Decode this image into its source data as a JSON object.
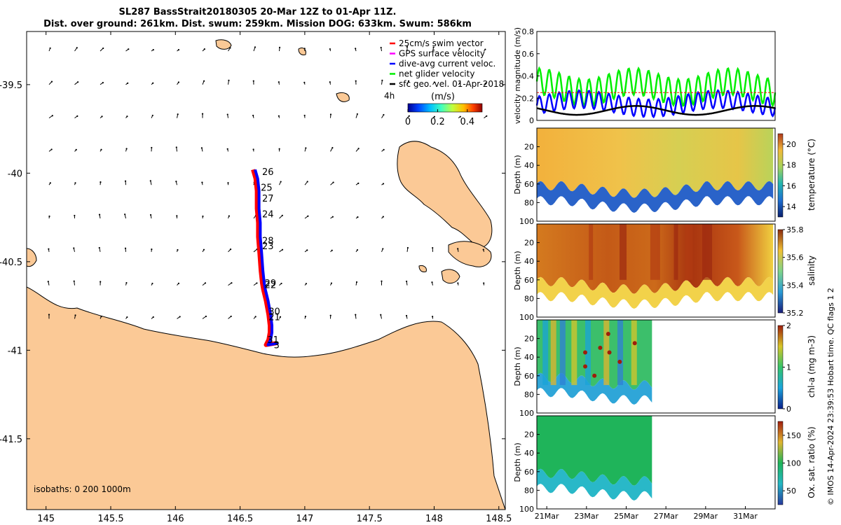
{
  "title": {
    "line1": "SL287 BassStrait20180305 20-Mar 12Z to 01-Apr 11Z.",
    "line2": "Dist. over ground: 261km. Dist. swum: 259km. Mission DOG: 633km. Swum: 586km"
  },
  "credit": "© IMOS 14-Apr-2024 23:39:53 Hobart time. QC flags 1  2",
  "colors": {
    "land": "#fbc996",
    "track_red": "#ff0000",
    "track_blue": "#0000ff",
    "net_velocity": "#00ee00",
    "speed_colormap": [
      "#00008f",
      "#0040ff",
      "#00bfff",
      "#40ffbf",
      "#bfff40",
      "#ffbf00",
      "#ff4000",
      "#8f0000"
    ]
  },
  "chart_data": [
    {
      "type": "scatter",
      "name": "map",
      "xlim": [
        144.85,
        148.55
      ],
      "ylim": [
        -41.9,
        -39.2
      ],
      "xticks": [
        145,
        145.5,
        146,
        146.5,
        147,
        147.5,
        148,
        148.5
      ],
      "xtick_labels": [
        "145",
        "145.5",
        "146",
        "146.5",
        "147",
        "147.5",
        "148",
        "148.5"
      ],
      "yticks": [
        -39.5,
        -40,
        -40.5,
        -41,
        -41.5
      ],
      "ytick_labels": [
        "-39.5",
        "-40",
        "-40.5",
        "-41",
        "-41.5"
      ],
      "legend": {
        "placement": "top-right",
        "items": [
          {
            "label": "25cm/s swim vector",
            "color": "#ff0000"
          },
          {
            "label": "GPS surface velocity",
            "color": "#ff00ff"
          },
          {
            "label": "dive-avg current veloc.",
            "color": "#0000ff"
          },
          {
            "label": "net glider velocity",
            "color": "#00ee00"
          },
          {
            "label": "sfc geo. vel. 01-Apr-2018",
            "color": "#000000"
          }
        ]
      },
      "vector_scale_label": "4h",
      "colorbar": {
        "label": "(m/s)",
        "range": [
          0,
          0.5
        ],
        "ticks": [
          0,
          0.2,
          0.4
        ],
        "tick_labels": [
          "0",
          "0.2",
          "0.4"
        ]
      },
      "isobath_label": "isobaths: 0   200  1000m",
      "track": [
        [
          146.6,
          -39.98
        ],
        [
          146.62,
          -40.03
        ],
        [
          146.63,
          -40.1
        ],
        [
          146.63,
          -40.2
        ],
        [
          146.64,
          -40.28
        ],
        [
          146.64,
          -40.36
        ],
        [
          146.65,
          -40.45
        ],
        [
          146.66,
          -40.55
        ],
        [
          146.67,
          -40.62
        ],
        [
          146.68,
          -40.66
        ],
        [
          146.7,
          -40.72
        ],
        [
          146.72,
          -40.8
        ],
        [
          146.73,
          -40.86
        ],
        [
          146.73,
          -40.9
        ],
        [
          146.72,
          -40.94
        ],
        [
          146.7,
          -40.97
        ],
        [
          146.78,
          -40.96
        ]
      ],
      "day_labels": [
        {
          "text": "26",
          "lon": 146.67,
          "lat": -39.99
        },
        {
          "text": "25",
          "lon": 146.66,
          "lat": -40.08
        },
        {
          "text": "27",
          "lon": 146.67,
          "lat": -40.14
        },
        {
          "text": "24",
          "lon": 146.67,
          "lat": -40.23
        },
        {
          "text": "28",
          "lon": 146.67,
          "lat": -40.38
        },
        {
          "text": "23",
          "lon": 146.67,
          "lat": -40.41
        },
        {
          "text": "29",
          "lon": 146.69,
          "lat": -40.62
        },
        {
          "text": "22",
          "lon": 146.69,
          "lat": -40.63
        },
        {
          "text": "30",
          "lon": 146.72,
          "lat": -40.78
        },
        {
          "text": "21",
          "lon": 146.72,
          "lat": -40.81
        },
        {
          "text": "31",
          "lon": 146.71,
          "lat": -40.94
        },
        {
          "text": "3",
          "lon": 146.76,
          "lat": -40.97
        }
      ]
    },
    {
      "type": "line",
      "name": "velocity",
      "ylabel": "velocity magnitude (m/s)",
      "ylim": [
        0,
        0.8
      ],
      "yticks": [
        0,
        0.2,
        0.4,
        0.6,
        0.8
      ],
      "ytick_labels": [
        "0",
        "0.2",
        "0.4",
        "0.6",
        "0.8"
      ],
      "xlim": [
        20.5,
        32.5
      ],
      "series": [
        {
          "color": "#00ee00",
          "base": 0.3,
          "amp": 0.12,
          "period": 0.5
        },
        {
          "color": "#0000ff",
          "base": 0.15,
          "amp": 0.08,
          "period": 0.5
        },
        {
          "color": "#000000",
          "base": 0.09,
          "amp": 0.04,
          "period": 6
        },
        {
          "color": "#ff0000",
          "constant": 0.25
        }
      ]
    },
    {
      "type": "heatmap",
      "name": "temperature",
      "ylabel": "Depth (m)",
      "ylim": [
        100,
        0
      ],
      "yticks": [
        20,
        40,
        60,
        80,
        100
      ],
      "ytick_labels": [
        "20",
        "40",
        "60",
        "80",
        "100"
      ],
      "x_end": 32.4,
      "colorbar": {
        "label": "temperature (°C)",
        "range": [
          13,
          21
        ],
        "ticks": [
          14,
          16,
          18,
          20
        ],
        "tick_labels": [
          "14",
          "16",
          "18",
          "20"
        ]
      }
    },
    {
      "type": "heatmap",
      "name": "salinity",
      "ylabel": "Depth (m)",
      "ylim": [
        100,
        0
      ],
      "yticks": [
        20,
        40,
        60,
        80,
        100
      ],
      "ytick_labels": [
        "20",
        "40",
        "60",
        "80",
        "100"
      ],
      "x_end": 32.4,
      "colorbar": {
        "label": "salinity",
        "range": [
          35.2,
          35.8
        ],
        "ticks": [
          35.2,
          35.4,
          35.6,
          35.8
        ],
        "tick_labels": [
          "35.2",
          "35.4",
          "35.6",
          "35.8"
        ]
      }
    },
    {
      "type": "heatmap",
      "name": "chlorophyll",
      "ylabel": "Depth (m)",
      "ylim": [
        100,
        0
      ],
      "yticks": [
        20,
        40,
        60,
        80,
        100
      ],
      "ytick_labels": [
        "20",
        "40",
        "60",
        "80",
        "100"
      ],
      "x_end": 26.3,
      "colorbar": {
        "label": "chl-a (mg m-3)",
        "range": [
          0,
          2
        ],
        "ticks": [
          0,
          1,
          2
        ],
        "tick_labels": [
          "0",
          "1",
          "2"
        ]
      }
    },
    {
      "type": "heatmap",
      "name": "oxygen",
      "ylabel": "Depth (m)",
      "ylim": [
        100,
        0
      ],
      "yticks": [
        20,
        40,
        60,
        80,
        100
      ],
      "ytick_labels": [
        "20",
        "40",
        "60",
        "80",
        "100"
      ],
      "x_end": 26.3,
      "xlim": [
        20.5,
        32.5
      ],
      "xticks": [
        21,
        23,
        25,
        27,
        29,
        31
      ],
      "xtick_labels": [
        "21Mar",
        "23Mar",
        "25Mar",
        "27Mar",
        "29Mar",
        "31Mar"
      ],
      "colorbar": {
        "label": "Ox. sat. ratio (%)",
        "range": [
          25,
          175
        ],
        "ticks": [
          50,
          100,
          150
        ],
        "tick_labels": [
          "50",
          "100",
          "150"
        ]
      }
    }
  ]
}
